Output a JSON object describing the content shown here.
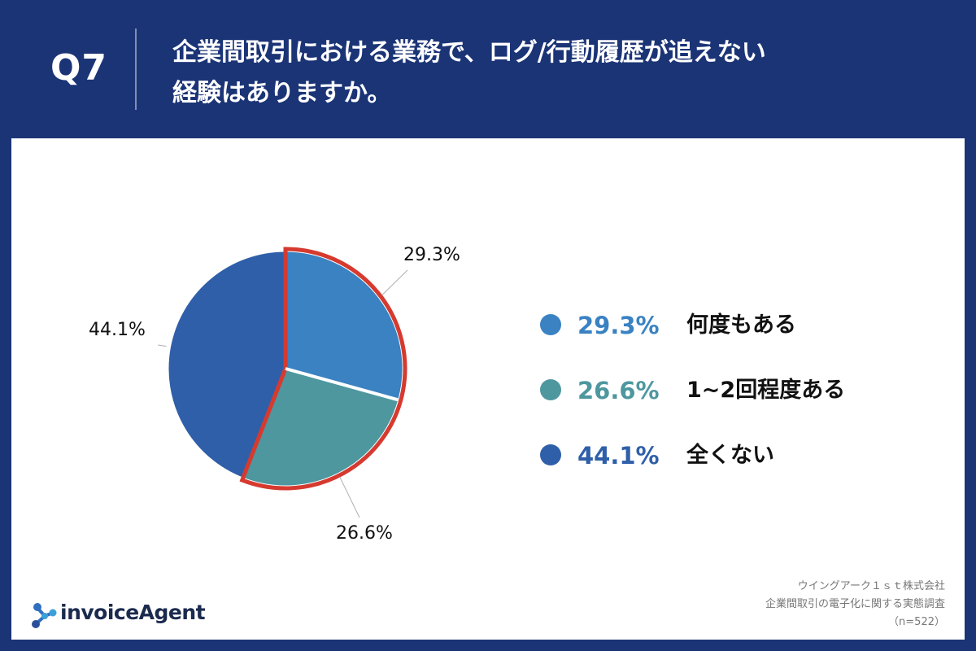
{
  "header": {
    "q_label": "Q7",
    "question_line1": "企業間取引における業務で、ログ/行動履歴が追えない",
    "question_line2": "経験はありますか。"
  },
  "chart_data": {
    "type": "pie",
    "categories": [
      "何度もある",
      "1~2回程度ある",
      "全くない"
    ],
    "values": [
      29.3,
      26.6,
      44.1
    ],
    "data_labels": [
      "29.3%",
      "26.6%",
      "44.1%"
    ],
    "colors": [
      "#3a82c2",
      "#4e979f",
      "#2f5fa8"
    ],
    "highlight_color": "#d63a2f",
    "highlighted": [
      0,
      1
    ],
    "legend_placement": "right"
  },
  "legend": {
    "items": [
      {
        "pct": "29.3%",
        "label": "何度もある",
        "color": "#3a82c2"
      },
      {
        "pct": "26.6%",
        "label": "1~2回程度ある",
        "color": "#4e979f"
      },
      {
        "pct": "44.1%",
        "label": "全くない",
        "color": "#2f5fa8"
      }
    ]
  },
  "footer": {
    "logo_text": "invoiceAgent",
    "company": "ウイングアーク１ｓｔ株式会社",
    "survey": "企業間取引の電子化に関する実態調査",
    "sample": "（n=522）"
  }
}
